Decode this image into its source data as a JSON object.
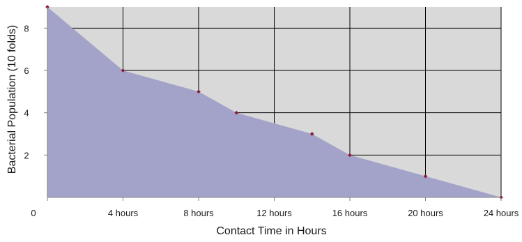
{
  "chart_data": {
    "type": "area",
    "title": "",
    "xlabel": "Contact Time in Hours",
    "ylabel": "Bacterial Population (10 folds)",
    "x": [
      0,
      4,
      8,
      10,
      14,
      16,
      20,
      24
    ],
    "y": [
      9,
      6,
      5,
      4,
      3,
      2,
      1,
      0
    ],
    "xlim": [
      0,
      24
    ],
    "ylim": [
      0,
      9
    ],
    "x_ticks": [
      {
        "value": 0,
        "label": "0"
      },
      {
        "value": 4,
        "label": "4 hours"
      },
      {
        "value": 8,
        "label": "8 hours"
      },
      {
        "value": 12,
        "label": "12 hours"
      },
      {
        "value": 16,
        "label": "16 hours"
      },
      {
        "value": 20,
        "label": "20 hours"
      },
      {
        "value": 24,
        "label": "24 hours"
      }
    ],
    "y_ticks": [
      {
        "value": 2,
        "label": "2"
      },
      {
        "value": 4,
        "label": "4"
      },
      {
        "value": 6,
        "label": "6"
      },
      {
        "value": 8,
        "label": "8"
      }
    ],
    "grid": true,
    "legend": "none",
    "colors": {
      "area_fill": "#a3a3ca",
      "plot_background": "#d9d9d9",
      "grid": "#000000",
      "marker": "#8b1a3a"
    }
  }
}
